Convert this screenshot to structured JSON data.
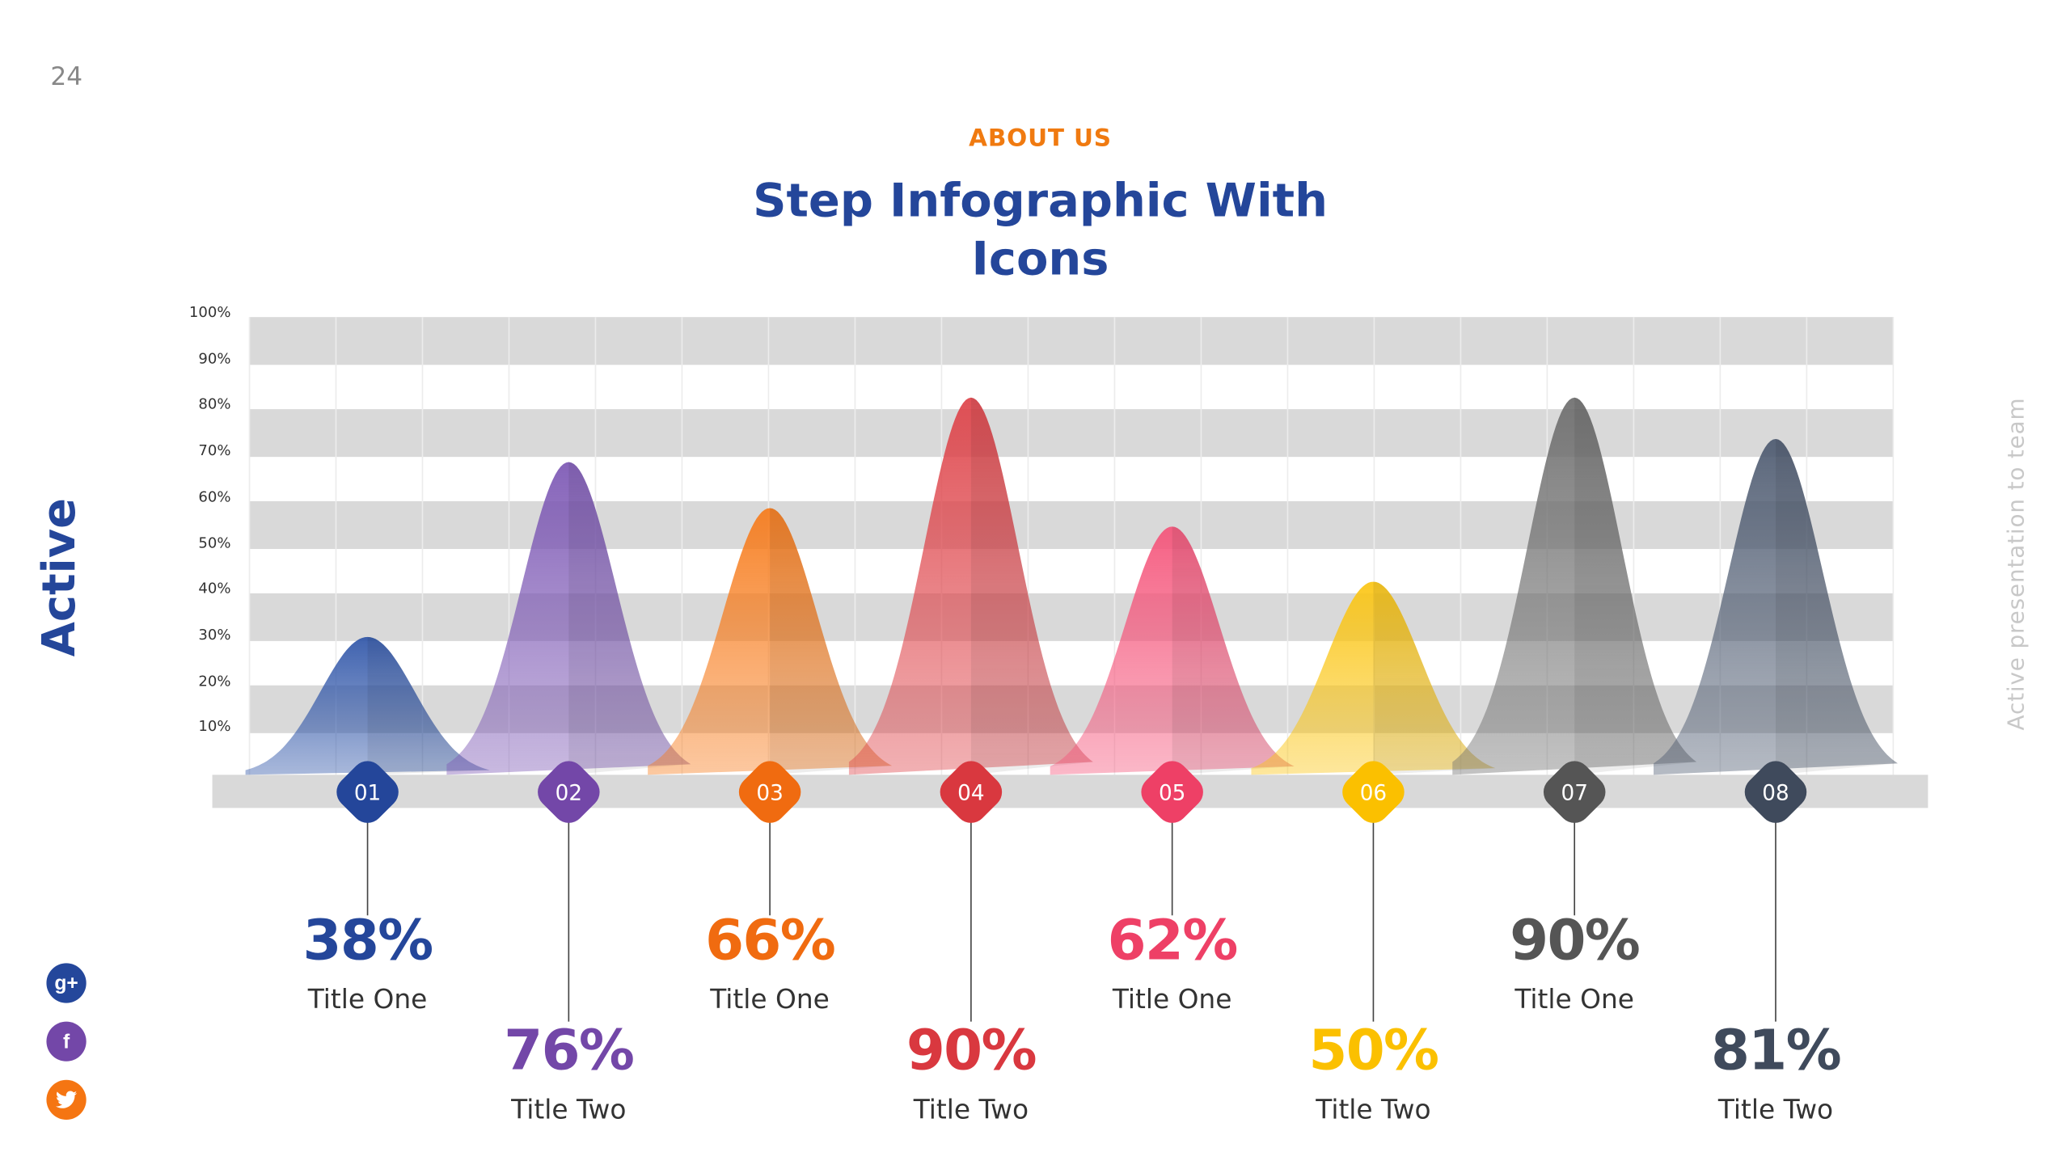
{
  "page_number": "24",
  "header": {
    "kicker": "ABOUT US",
    "title_line1": "Step Infographic With",
    "title_line2": "Icons"
  },
  "brand": "Active",
  "tagline": "Active presentation  to team",
  "social": [
    {
      "icon": "google-plus-icon",
      "glyph": "g+",
      "color": "#24479b"
    },
    {
      "icon": "facebook-icon",
      "glyph": "f",
      "color": "#7347a8"
    },
    {
      "icon": "twitter-icon",
      "glyph": "🐦",
      "color": "#f57512"
    }
  ],
  "chart_data": {
    "type": "area",
    "shape": "bell",
    "y_ticks": [
      "10%",
      "20%",
      "30%",
      "40%",
      "50%",
      "60%",
      "70%",
      "80%",
      "90%",
      "100%"
    ],
    "ylim": [
      0,
      100
    ],
    "grid": "alternating horizontal bands",
    "categories": [
      "01",
      "02",
      "03",
      "04",
      "05",
      "06",
      "07",
      "08"
    ],
    "values": [
      38,
      76,
      66,
      90,
      62,
      50,
      90,
      81
    ],
    "value_labels": [
      "38%",
      "76%",
      "66%",
      "90%",
      "62%",
      "50%",
      "90%",
      "81%"
    ],
    "titles": [
      "Title One",
      "Title Two",
      "Title One",
      "Title Two",
      "Title One",
      "Title Two",
      "Title One",
      "Title Two"
    ],
    "colors": [
      "#2f55a8",
      "#7c57b4",
      "#f77b1b",
      "#de4349",
      "#f5547a",
      "#fbc512",
      "#6e6e6e",
      "#4d5a70"
    ],
    "label_colors": [
      "#24469a",
      "#7347a8",
      "#f06b10",
      "#d9383f",
      "#ee4066",
      "#fbc000",
      "#555555",
      "#3f4a5c"
    ]
  }
}
